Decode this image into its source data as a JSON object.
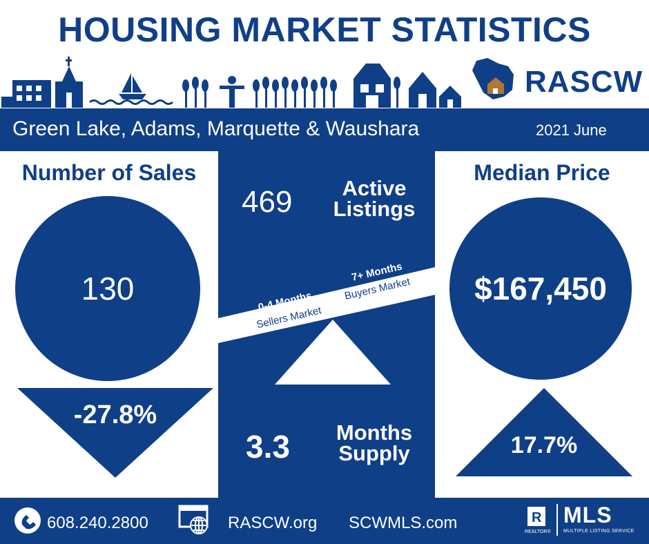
{
  "header": {
    "title": "HOUSING MARKET STATISTICS",
    "brand": "RASCW"
  },
  "band": {
    "region": "Green Lake, Adams, Marquette & Waushara",
    "date": "2021 June"
  },
  "sales": {
    "heading": "Number of Sales",
    "value": "130",
    "change": "-27.8%"
  },
  "price": {
    "heading": "Median Price",
    "value": "$167,450",
    "change": "17.7%"
  },
  "active": {
    "value": "469",
    "label_line1": "Active",
    "label_line2": "Listings"
  },
  "scale": {
    "left_top": "0-4 Months",
    "left_bottom": "Sellers Market",
    "right_top": "7+ Months",
    "right_bottom": "Buyers Market"
  },
  "supply": {
    "value": "3.3",
    "label_line1": "Months",
    "label_line2": "Supply"
  },
  "footer": {
    "phone": "608.240.2800",
    "site1": "RASCW.org",
    "site2": "SCWMLS.com",
    "realtor": "REALTOR®",
    "mls": "MLS",
    "mls_sub": "MULTIPLE LISTING SERVICE"
  },
  "colors": {
    "navy": "#0f3f87",
    "accent": "#b07832"
  }
}
